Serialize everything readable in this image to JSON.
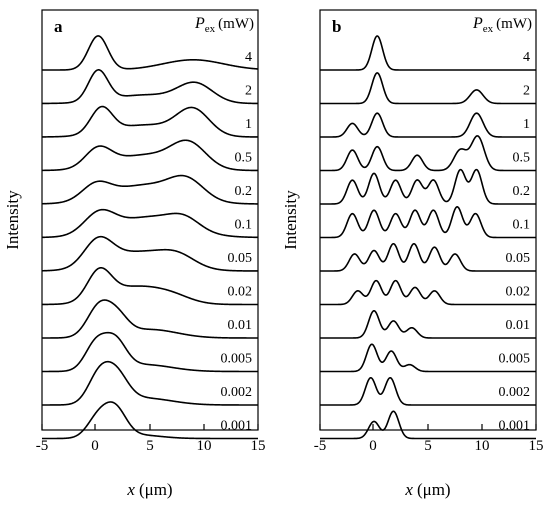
{
  "figure": {
    "ylabel": "Intensity",
    "xlabel_var": "x",
    "xlabel_unit": "(μm)",
    "legend_var": "P",
    "legend_sub": "ex",
    "legend_unit": "(mW)"
  },
  "chart_data": [
    {
      "type": "line",
      "panel": "a",
      "xlabel": "x (μm)",
      "ylabel": "Intensity",
      "xlim": [
        -5,
        15
      ],
      "xticks": [
        "-5",
        "0",
        "5",
        "10",
        "15"
      ],
      "stack_label": "P_ex (mW)",
      "series": [
        {
          "name": "4",
          "peaks": [
            {
              "x": 0.2,
              "a": 1.0,
              "w": 0.9
            },
            {
              "x": 9.0,
              "a": 0.3,
              "w": 2.8
            }
          ]
        },
        {
          "name": "2",
          "peaks": [
            {
              "x": 0.2,
              "a": 0.9,
              "w": 0.9
            },
            {
              "x": 4.5,
              "a": 0.25,
              "w": 3.0
            },
            {
              "x": 9.2,
              "a": 0.55,
              "w": 1.6
            }
          ]
        },
        {
          "name": "1",
          "peaks": [
            {
              "x": 0.5,
              "a": 0.75,
              "w": 1.0
            },
            {
              "x": 4.5,
              "a": 0.35,
              "w": 3.0
            },
            {
              "x": 9.0,
              "a": 0.75,
              "w": 1.5
            }
          ]
        },
        {
          "name": "0.5",
          "peaks": [
            {
              "x": 0.2,
              "a": 0.55,
              "w": 1.2
            },
            {
              "x": 4.5,
              "a": 0.45,
              "w": 3.0
            },
            {
              "x": 8.6,
              "a": 0.7,
              "w": 1.6
            }
          ]
        },
        {
          "name": "0.2",
          "peaks": [
            {
              "x": 0.0,
              "a": 0.45,
              "w": 1.3
            },
            {
              "x": 4.5,
              "a": 0.55,
              "w": 3.2
            },
            {
              "x": 8.4,
              "a": 0.55,
              "w": 1.6
            }
          ]
        },
        {
          "name": "0.1",
          "peaks": [
            {
              "x": 0.3,
              "a": 0.6,
              "w": 1.4
            },
            {
              "x": 5.0,
              "a": 0.6,
              "w": 3.2
            },
            {
              "x": 8.2,
              "a": 0.3,
              "w": 1.4
            }
          ]
        },
        {
          "name": "0.05",
          "peaks": [
            {
              "x": 0.2,
              "a": 0.75,
              "w": 1.3
            },
            {
              "x": 4.0,
              "a": 0.55,
              "w": 3.0
            },
            {
              "x": 7.6,
              "a": 0.3,
              "w": 1.6
            }
          ]
        },
        {
          "name": "0.02",
          "peaks": [
            {
              "x": 0.3,
              "a": 0.85,
              "w": 1.1
            },
            {
              "x": 3.5,
              "a": 0.5,
              "w": 2.5
            },
            {
              "x": 7.0,
              "a": 0.2,
              "w": 1.8
            }
          ]
        },
        {
          "name": "0.01",
          "peaks": [
            {
              "x": 0.3,
              "a": 0.9,
              "w": 1.1
            },
            {
              "x": 2.0,
              "a": 0.5,
              "w": 1.0
            },
            {
              "x": 5.0,
              "a": 0.25,
              "w": 2.5
            }
          ]
        },
        {
          "name": "0.005",
          "peaks": [
            {
              "x": 0.0,
              "a": 0.8,
              "w": 1.0
            },
            {
              "x": 1.8,
              "a": 0.8,
              "w": 1.0
            },
            {
              "x": 4.5,
              "a": 0.2,
              "w": 2.5
            }
          ]
        },
        {
          "name": "0.002",
          "peaks": [
            {
              "x": 0.2,
              "a": 0.75,
              "w": 1.0
            },
            {
              "x": 1.8,
              "a": 0.85,
              "w": 1.1
            },
            {
              "x": 4.5,
              "a": 0.2,
              "w": 2.5
            }
          ]
        },
        {
          "name": "0.001",
          "peaks": [
            {
              "x": 0.2,
              "a": 0.6,
              "w": 1.0
            },
            {
              "x": 1.8,
              "a": 0.8,
              "w": 1.0
            },
            {
              "x": 4.0,
              "a": 0.1,
              "w": 2.0
            }
          ]
        }
      ]
    },
    {
      "type": "line",
      "panel": "b",
      "xlabel": "x (μm)",
      "ylabel": "Intensity",
      "xlim": [
        -5,
        15
      ],
      "xticks": [
        "-5",
        "0",
        "5",
        "10",
        "15"
      ],
      "stack_label": "P_ex (mW)",
      "series": [
        {
          "name": "4",
          "peaks": [
            {
              "x": 0.3,
              "a": 1.0,
              "w": 0.5
            }
          ]
        },
        {
          "name": "2",
          "peaks": [
            {
              "x": 0.3,
              "a": 0.9,
              "w": 0.5
            },
            {
              "x": 9.5,
              "a": 0.4,
              "w": 0.6
            }
          ]
        },
        {
          "name": "1",
          "peaks": [
            {
              "x": -2.0,
              "a": 0.4,
              "w": 0.5
            },
            {
              "x": 0.3,
              "a": 0.7,
              "w": 0.5
            },
            {
              "x": 9.5,
              "a": 0.7,
              "w": 0.6
            }
          ]
        },
        {
          "name": "0.5",
          "peaks": [
            {
              "x": -2.0,
              "a": 0.6,
              "w": 0.5
            },
            {
              "x": 0.3,
              "a": 0.7,
              "w": 0.5
            },
            {
              "x": 4.0,
              "a": 0.45,
              "w": 0.5
            },
            {
              "x": 8.0,
              "a": 0.6,
              "w": 0.6
            },
            {
              "x": 9.6,
              "a": 1.0,
              "w": 0.6
            }
          ]
        },
        {
          "name": "0.2",
          "peaks": [
            {
              "x": -2.0,
              "a": 0.7,
              "w": 0.5
            },
            {
              "x": 0.0,
              "a": 0.9,
              "w": 0.5
            },
            {
              "x": 2.0,
              "a": 0.7,
              "w": 0.5
            },
            {
              "x": 4.0,
              "a": 0.7,
              "w": 0.5
            },
            {
              "x": 5.5,
              "a": 0.7,
              "w": 0.5
            },
            {
              "x": 8.0,
              "a": 1.0,
              "w": 0.5
            },
            {
              "x": 9.5,
              "a": 1.0,
              "w": 0.5
            }
          ]
        },
        {
          "name": "0.1",
          "peaks": [
            {
              "x": -2.0,
              "a": 0.7,
              "w": 0.5
            },
            {
              "x": 0.0,
              "a": 0.8,
              "w": 0.5
            },
            {
              "x": 2.0,
              "a": 0.7,
              "w": 0.5
            },
            {
              "x": 3.8,
              "a": 0.8,
              "w": 0.5
            },
            {
              "x": 5.5,
              "a": 0.8,
              "w": 0.5
            },
            {
              "x": 7.7,
              "a": 0.9,
              "w": 0.5
            },
            {
              "x": 9.4,
              "a": 0.7,
              "w": 0.5
            }
          ]
        },
        {
          "name": "0.05",
          "peaks": [
            {
              "x": -1.8,
              "a": 0.5,
              "w": 0.5
            },
            {
              "x": 0.0,
              "a": 0.6,
              "w": 0.5
            },
            {
              "x": 1.8,
              "a": 0.8,
              "w": 0.5
            },
            {
              "x": 3.7,
              "a": 0.8,
              "w": 0.5
            },
            {
              "x": 5.6,
              "a": 0.7,
              "w": 0.5
            },
            {
              "x": 7.5,
              "a": 0.5,
              "w": 0.5
            }
          ]
        },
        {
          "name": "0.02",
          "peaks": [
            {
              "x": -1.5,
              "a": 0.4,
              "w": 0.5
            },
            {
              "x": 0.2,
              "a": 0.7,
              "w": 0.5
            },
            {
              "x": 2.0,
              "a": 0.7,
              "w": 0.5
            },
            {
              "x": 3.8,
              "a": 0.5,
              "w": 0.5
            },
            {
              "x": 5.6,
              "a": 0.4,
              "w": 0.5
            }
          ]
        },
        {
          "name": "0.01",
          "peaks": [
            {
              "x": 0.0,
              "a": 0.8,
              "w": 0.5
            },
            {
              "x": 1.8,
              "a": 0.5,
              "w": 0.5
            },
            {
              "x": 3.5,
              "a": 0.3,
              "w": 0.5
            }
          ]
        },
        {
          "name": "0.005",
          "peaks": [
            {
              "x": -0.2,
              "a": 0.8,
              "w": 0.5
            },
            {
              "x": 1.6,
              "a": 0.6,
              "w": 0.5
            },
            {
              "x": 3.3,
              "a": 0.2,
              "w": 0.5
            }
          ]
        },
        {
          "name": "0.002",
          "peaks": [
            {
              "x": -0.3,
              "a": 0.8,
              "w": 0.5
            },
            {
              "x": 1.5,
              "a": 0.8,
              "w": 0.5
            }
          ]
        },
        {
          "name": "0.001",
          "peaks": [
            {
              "x": 0.0,
              "a": 0.5,
              "w": 0.5
            },
            {
              "x": 1.8,
              "a": 0.8,
              "w": 0.5
            }
          ]
        }
      ]
    }
  ]
}
